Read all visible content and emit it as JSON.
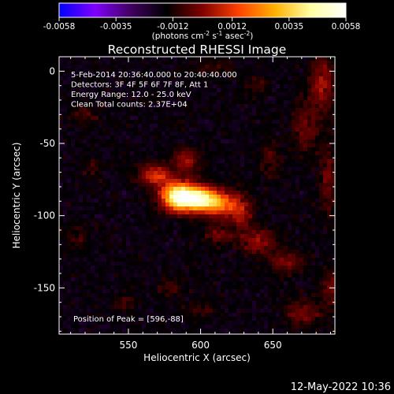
{
  "chart_data": {
    "type": "heatmap",
    "title": "Reconstructed RHESSI Image",
    "xlabel": "Heliocentric X (arcsec)",
    "ylabel": "Heliocentric Y (arcsec)",
    "xlim": [
      502,
      693
    ],
    "ylim": [
      -182,
      10
    ],
    "xticks": [
      550,
      600,
      650
    ],
    "yticks": [
      0,
      -50,
      -100,
      -150
    ],
    "colorbar": {
      "range": [
        -0.0058,
        0.0058
      ],
      "tick_values": [
        -0.0058,
        -0.0035,
        -0.0012,
        0.0012,
        0.0035,
        0.0058
      ],
      "tick_labels": [
        "-0.0058",
        "-0.0035",
        "-0.0012",
        "0.0012",
        "0.0035",
        "0.0058"
      ],
      "units_text": "(photons cm",
      "units_exp1": "-2",
      "units_mid": " s",
      "units_exp2": "-1",
      "units_end": " asec",
      "units_exp3": "-2",
      "units_close": ")",
      "colormap": [
        "#0000ff",
        "#8000ff",
        "#400060",
        "#000000",
        "#800000",
        "#ff4000",
        "#ffb000",
        "#ffffa0",
        "#ffffff"
      ]
    },
    "annotations": [
      "5-Feb-2014 20:36:40.000 to 20:40:40.000",
      "Detectors: 3F 4F 5F 6F 7F 8F, Att 1",
      "Energy Range: 12.0 - 25.0 keV",
      "Clean    Total counts: 2.37E+04"
    ],
    "peak_label": "Position of Peak = [596,-88]",
    "peak": [
      596,
      -88
    ],
    "sources": [
      {
        "x": 596,
        "y": -88,
        "amp": 1.0,
        "sx": 10,
        "sy": 6
      },
      {
        "x": 583,
        "y": -86,
        "amp": 0.75,
        "sx": 8,
        "sy": 7
      },
      {
        "x": 612,
        "y": -92,
        "amp": 0.55,
        "sx": 9,
        "sy": 6
      },
      {
        "x": 568,
        "y": -72,
        "amp": 0.42,
        "sx": 8,
        "sy": 5
      },
      {
        "x": 590,
        "y": -62,
        "amp": 0.32,
        "sx": 6,
        "sy": 6
      },
      {
        "x": 628,
        "y": -98,
        "amp": 0.3,
        "sx": 6,
        "sy": 8
      },
      {
        "x": 640,
        "y": -118,
        "amp": 0.28,
        "sx": 10,
        "sy": 6
      },
      {
        "x": 660,
        "y": -132,
        "amp": 0.25,
        "sx": 8,
        "sy": 5
      },
      {
        "x": 612,
        "y": -113,
        "amp": 0.22,
        "sx": 6,
        "sy": 5
      },
      {
        "x": 684,
        "y": -10,
        "amp": 0.3,
        "sx": 6,
        "sy": 14
      },
      {
        "x": 672,
        "y": -40,
        "amp": 0.22,
        "sx": 6,
        "sy": 12
      },
      {
        "x": 688,
        "y": -75,
        "amp": 0.2,
        "sx": 4,
        "sy": 18
      },
      {
        "x": 670,
        "y": -168,
        "amp": 0.25,
        "sx": 8,
        "sy": 6
      },
      {
        "x": 690,
        "y": -150,
        "amp": 0.22,
        "sx": 5,
        "sy": 10
      },
      {
        "x": 578,
        "y": -150,
        "amp": 0.14,
        "sx": 6,
        "sy": 4
      },
      {
        "x": 548,
        "y": -160,
        "amp": 0.13,
        "sx": 5,
        "sy": 4
      },
      {
        "x": 515,
        "y": -115,
        "amp": 0.12,
        "sx": 5,
        "sy": 6
      },
      {
        "x": 520,
        "y": -30,
        "amp": 0.14,
        "sx": 6,
        "sy": 5
      },
      {
        "x": 610,
        "y": 2,
        "amp": 0.13,
        "sx": 10,
        "sy": 4
      },
      {
        "x": 640,
        "y": -10,
        "amp": 0.12,
        "sx": 6,
        "sy": 5
      },
      {
        "x": 525,
        "y": -68,
        "amp": 0.14,
        "sx": 4,
        "sy": 5
      },
      {
        "x": 600,
        "y": -165,
        "amp": 0.12,
        "sx": 8,
        "sy": 4
      },
      {
        "x": 648,
        "y": -60,
        "amp": 0.15,
        "sx": 5,
        "sy": 10
      }
    ]
  },
  "footer": {
    "date": "12-May-2022 10:36"
  }
}
